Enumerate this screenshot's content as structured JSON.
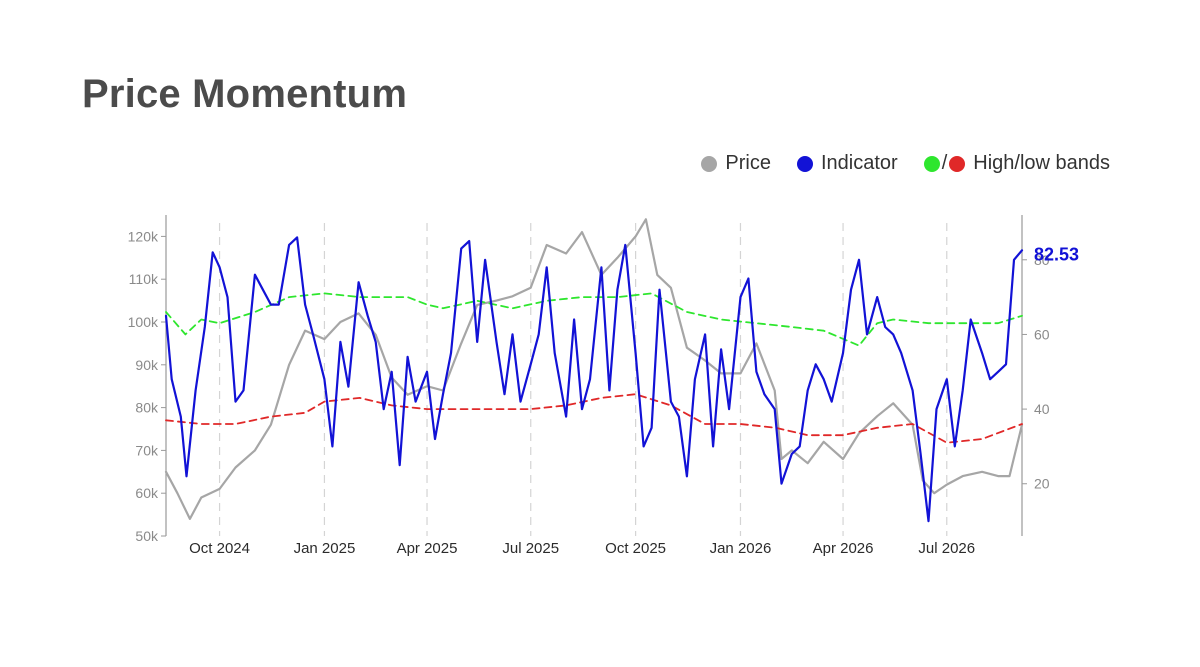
{
  "title": "Price Momentum",
  "legend": {
    "price": "Price",
    "indicator": "Indicator",
    "bands_slash": "/",
    "bands": "High/low bands"
  },
  "colors": {
    "price": "#a6a6a6",
    "indicator": "#1212d6",
    "high_band": "#2ee62e",
    "low_band": "#e02828",
    "title": "#4b4b4b"
  },
  "chart_data": {
    "type": "line",
    "x_start": "2024-08-15",
    "x_end": "2026-09-05",
    "xticks": [
      {
        "date": "2024-10-01",
        "label": "Oct 2024"
      },
      {
        "date": "2025-01-01",
        "label": "Jan 2025"
      },
      {
        "date": "2025-04-01",
        "label": "Apr 2025"
      },
      {
        "date": "2025-07-01",
        "label": "Jul 2025"
      },
      {
        "date": "2025-10-01",
        "label": "Oct 2025"
      },
      {
        "date": "2026-01-01",
        "label": "Jan 2026"
      },
      {
        "date": "2026-04-01",
        "label": "Apr 2026"
      },
      {
        "date": "2026-07-01",
        "label": "Jul 2026"
      }
    ],
    "y_left": {
      "min": 50000,
      "max": 125000,
      "ticks": [
        50000,
        60000,
        70000,
        80000,
        90000,
        100000,
        110000,
        120000
      ],
      "labels": [
        "50k",
        "60k",
        "70k",
        "80k",
        "90k",
        "100k",
        "110k",
        "120k"
      ]
    },
    "y_right": {
      "min": 6,
      "max": 92,
      "ticks": [
        20,
        40,
        60,
        80
      ],
      "labels": [
        "20",
        "40",
        "60",
        "80"
      ]
    },
    "grid": "vertical dashed at x ticks",
    "end_value_label": "82.53",
    "series": [
      {
        "name": "Price",
        "axis": "left",
        "style": "solid",
        "points": [
          [
            "2024-08-15",
            65000
          ],
          [
            "2024-08-25",
            60000
          ],
          [
            "2024-09-05",
            54000
          ],
          [
            "2024-09-15",
            59000
          ],
          [
            "2024-10-01",
            61000
          ],
          [
            "2024-10-15",
            66000
          ],
          [
            "2024-11-01",
            70000
          ],
          [
            "2024-11-15",
            76000
          ],
          [
            "2024-12-01",
            90000
          ],
          [
            "2024-12-15",
            98000
          ],
          [
            "2025-01-01",
            96000
          ],
          [
            "2025-01-15",
            100000
          ],
          [
            "2025-01-31",
            102000
          ],
          [
            "2025-02-15",
            97000
          ],
          [
            "2025-03-01",
            87000
          ],
          [
            "2025-03-15",
            83000
          ],
          [
            "2025-04-01",
            85000
          ],
          [
            "2025-04-15",
            84000
          ],
          [
            "2025-05-01",
            95000
          ],
          [
            "2025-05-15",
            104000
          ],
          [
            "2025-06-01",
            105000
          ],
          [
            "2025-06-15",
            106000
          ],
          [
            "2025-07-01",
            108000
          ],
          [
            "2025-07-15",
            118000
          ],
          [
            "2025-08-01",
            116000
          ],
          [
            "2025-08-15",
            121000
          ],
          [
            "2025-09-01",
            111000
          ],
          [
            "2025-09-15",
            115000
          ],
          [
            "2025-10-01",
            120000
          ],
          [
            "2025-10-10",
            124000
          ],
          [
            "2025-10-20",
            111000
          ],
          [
            "2025-11-01",
            108000
          ],
          [
            "2025-11-15",
            94000
          ],
          [
            "2025-12-01",
            91000
          ],
          [
            "2025-12-15",
            88000
          ],
          [
            "2026-01-01",
            88000
          ],
          [
            "2026-01-15",
            95000
          ],
          [
            "2026-01-31",
            84000
          ],
          [
            "2026-02-06",
            68000
          ],
          [
            "2026-02-15",
            70000
          ],
          [
            "2026-03-01",
            67000
          ],
          [
            "2026-03-15",
            72000
          ],
          [
            "2026-04-01",
            68000
          ],
          [
            "2026-04-15",
            74000
          ],
          [
            "2026-05-01",
            78000
          ],
          [
            "2026-05-15",
            81000
          ],
          [
            "2026-06-01",
            76000
          ],
          [
            "2026-06-10",
            63000
          ],
          [
            "2026-06-20",
            60000
          ],
          [
            "2026-07-01",
            62000
          ],
          [
            "2026-07-15",
            64000
          ],
          [
            "2026-08-01",
            65000
          ],
          [
            "2026-08-15",
            64000
          ],
          [
            "2026-08-25",
            64000
          ],
          [
            "2026-09-05",
            76000
          ]
        ]
      },
      {
        "name": "Indicator",
        "axis": "right",
        "style": "solid",
        "points": [
          [
            "2024-08-15",
            65
          ],
          [
            "2024-08-20",
            48
          ],
          [
            "2024-08-28",
            38
          ],
          [
            "2024-09-02",
            22
          ],
          [
            "2024-09-10",
            45
          ],
          [
            "2024-09-18",
            62
          ],
          [
            "2024-09-25",
            82
          ],
          [
            "2024-10-01",
            78
          ],
          [
            "2024-10-08",
            70
          ],
          [
            "2024-10-15",
            42
          ],
          [
            "2024-10-22",
            45
          ],
          [
            "2024-11-01",
            76
          ],
          [
            "2024-11-08",
            72
          ],
          [
            "2024-11-15",
            68
          ],
          [
            "2024-11-22",
            68
          ],
          [
            "2024-12-01",
            84
          ],
          [
            "2024-12-08",
            86
          ],
          [
            "2024-12-15",
            68
          ],
          [
            "2024-12-22",
            60
          ],
          [
            "2025-01-01",
            48
          ],
          [
            "2025-01-08",
            30
          ],
          [
            "2025-01-15",
            58
          ],
          [
            "2025-01-22",
            46
          ],
          [
            "2025-01-31",
            74
          ],
          [
            "2025-02-08",
            65
          ],
          [
            "2025-02-15",
            58
          ],
          [
            "2025-02-22",
            40
          ],
          [
            "2025-03-01",
            50
          ],
          [
            "2025-03-08",
            25
          ],
          [
            "2025-03-15",
            54
          ],
          [
            "2025-03-22",
            42
          ],
          [
            "2025-04-01",
            50
          ],
          [
            "2025-04-08",
            32
          ],
          [
            "2025-04-15",
            44
          ],
          [
            "2025-04-22",
            55
          ],
          [
            "2025-05-01",
            83
          ],
          [
            "2025-05-08",
            85
          ],
          [
            "2025-05-15",
            58
          ],
          [
            "2025-05-22",
            80
          ],
          [
            "2025-06-01",
            58
          ],
          [
            "2025-06-08",
            44
          ],
          [
            "2025-06-15",
            60
          ],
          [
            "2025-06-22",
            42
          ],
          [
            "2025-07-01",
            52
          ],
          [
            "2025-07-08",
            60
          ],
          [
            "2025-07-15",
            78
          ],
          [
            "2025-07-22",
            55
          ],
          [
            "2025-08-01",
            38
          ],
          [
            "2025-08-08",
            64
          ],
          [
            "2025-08-15",
            40
          ],
          [
            "2025-08-22",
            48
          ],
          [
            "2025-09-01",
            78
          ],
          [
            "2025-09-08",
            45
          ],
          [
            "2025-09-15",
            72
          ],
          [
            "2025-09-22",
            84
          ],
          [
            "2025-10-01",
            55
          ],
          [
            "2025-10-08",
            30
          ],
          [
            "2025-10-15",
            35
          ],
          [
            "2025-10-22",
            72
          ],
          [
            "2025-11-01",
            42
          ],
          [
            "2025-11-08",
            38
          ],
          [
            "2025-11-15",
            22
          ],
          [
            "2025-11-22",
            48
          ],
          [
            "2025-12-01",
            60
          ],
          [
            "2025-12-08",
            30
          ],
          [
            "2025-12-15",
            56
          ],
          [
            "2025-12-22",
            40
          ],
          [
            "2026-01-01",
            70
          ],
          [
            "2026-01-08",
            75
          ],
          [
            "2026-01-15",
            50
          ],
          [
            "2026-01-22",
            44
          ],
          [
            "2026-01-31",
            40
          ],
          [
            "2026-02-06",
            20
          ],
          [
            "2026-02-15",
            28
          ],
          [
            "2026-02-22",
            30
          ],
          [
            "2026-03-01",
            45
          ],
          [
            "2026-03-08",
            52
          ],
          [
            "2026-03-15",
            48
          ],
          [
            "2026-03-22",
            42
          ],
          [
            "2026-04-01",
            55
          ],
          [
            "2026-04-08",
            72
          ],
          [
            "2026-04-15",
            80
          ],
          [
            "2026-04-22",
            60
          ],
          [
            "2026-05-01",
            70
          ],
          [
            "2026-05-08",
            62
          ],
          [
            "2026-05-15",
            60
          ],
          [
            "2026-05-22",
            55
          ],
          [
            "2026-06-01",
            45
          ],
          [
            "2026-06-08",
            28
          ],
          [
            "2026-06-15",
            10
          ],
          [
            "2026-06-22",
            40
          ],
          [
            "2026-07-01",
            48
          ],
          [
            "2026-07-08",
            30
          ],
          [
            "2026-07-15",
            45
          ],
          [
            "2026-07-22",
            64
          ],
          [
            "2026-08-01",
            55
          ],
          [
            "2026-08-08",
            48
          ],
          [
            "2026-08-15",
            50
          ],
          [
            "2026-08-22",
            52
          ],
          [
            "2026-08-29",
            80
          ],
          [
            "2026-09-05",
            82.53
          ]
        ]
      },
      {
        "name": "High band",
        "axis": "right",
        "style": "dashed",
        "points": [
          [
            "2024-08-15",
            66
          ],
          [
            "2024-09-01",
            60
          ],
          [
            "2024-09-15",
            64
          ],
          [
            "2024-10-01",
            63
          ],
          [
            "2024-11-01",
            66
          ],
          [
            "2024-12-01",
            70
          ],
          [
            "2025-01-01",
            71
          ],
          [
            "2025-02-01",
            70
          ],
          [
            "2025-03-15",
            70
          ],
          [
            "2025-04-01",
            68
          ],
          [
            "2025-04-15",
            67
          ],
          [
            "2025-05-15",
            69
          ],
          [
            "2025-06-15",
            67
          ],
          [
            "2025-07-15",
            69
          ],
          [
            "2025-08-15",
            70
          ],
          [
            "2025-09-15",
            70
          ],
          [
            "2025-10-15",
            71
          ],
          [
            "2025-11-15",
            66
          ],
          [
            "2025-12-15",
            64
          ],
          [
            "2026-01-15",
            63
          ],
          [
            "2026-02-15",
            62
          ],
          [
            "2026-03-15",
            61
          ],
          [
            "2026-04-15",
            57
          ],
          [
            "2026-05-01",
            63
          ],
          [
            "2026-05-15",
            64
          ],
          [
            "2026-06-15",
            63
          ],
          [
            "2026-07-15",
            63
          ],
          [
            "2026-08-15",
            63
          ],
          [
            "2026-09-05",
            65
          ]
        ]
      },
      {
        "name": "Low band",
        "axis": "right",
        "style": "dashed",
        "points": [
          [
            "2024-08-15",
            37
          ],
          [
            "2024-09-15",
            36
          ],
          [
            "2024-10-15",
            36
          ],
          [
            "2024-11-15",
            38
          ],
          [
            "2024-12-15",
            39
          ],
          [
            "2025-01-01",
            42
          ],
          [
            "2025-02-01",
            43
          ],
          [
            "2025-03-01",
            41
          ],
          [
            "2025-04-01",
            40
          ],
          [
            "2025-05-01",
            40
          ],
          [
            "2025-06-01",
            40
          ],
          [
            "2025-07-01",
            40
          ],
          [
            "2025-08-01",
            41
          ],
          [
            "2025-09-01",
            43
          ],
          [
            "2025-10-01",
            44
          ],
          [
            "2025-11-01",
            41
          ],
          [
            "2025-12-01",
            36
          ],
          [
            "2026-01-01",
            36
          ],
          [
            "2026-02-01",
            35
          ],
          [
            "2026-03-01",
            33
          ],
          [
            "2026-04-01",
            33
          ],
          [
            "2026-05-01",
            35
          ],
          [
            "2026-06-01",
            36
          ],
          [
            "2026-07-01",
            31
          ],
          [
            "2026-08-01",
            32
          ],
          [
            "2026-09-05",
            36
          ]
        ]
      }
    ]
  }
}
